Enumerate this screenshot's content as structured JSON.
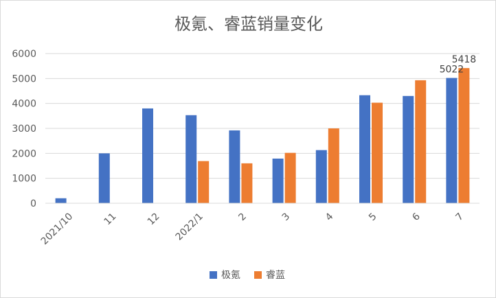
{
  "chart_data": {
    "type": "bar",
    "title": "极氪、睿蓝销量变化",
    "categories": [
      "2021/10",
      "11",
      "12",
      "2022/1",
      "2",
      "3",
      "4",
      "5",
      "6",
      "7"
    ],
    "series": [
      {
        "name": "极氪",
        "color": "#4472c4",
        "values": [
          200,
          2000,
          3800,
          3530,
          2920,
          1790,
          2130,
          4330,
          4300,
          5022
        ]
      },
      {
        "name": "睿蓝",
        "color": "#ed7d31",
        "values": [
          null,
          null,
          null,
          1690,
          1600,
          2020,
          3000,
          4030,
          4930,
          5418
        ]
      }
    ],
    "y_ticks": [
      "0",
      "1000",
      "2000",
      "3000",
      "4000",
      "5000",
      "6000"
    ],
    "ylim": [
      0,
      6000
    ],
    "grid": true,
    "legend_position": "bottom",
    "data_labels": [
      {
        "series": 0,
        "index": 9,
        "text": "5022"
      },
      {
        "series": 1,
        "index": 9,
        "text": "5418"
      }
    ]
  }
}
